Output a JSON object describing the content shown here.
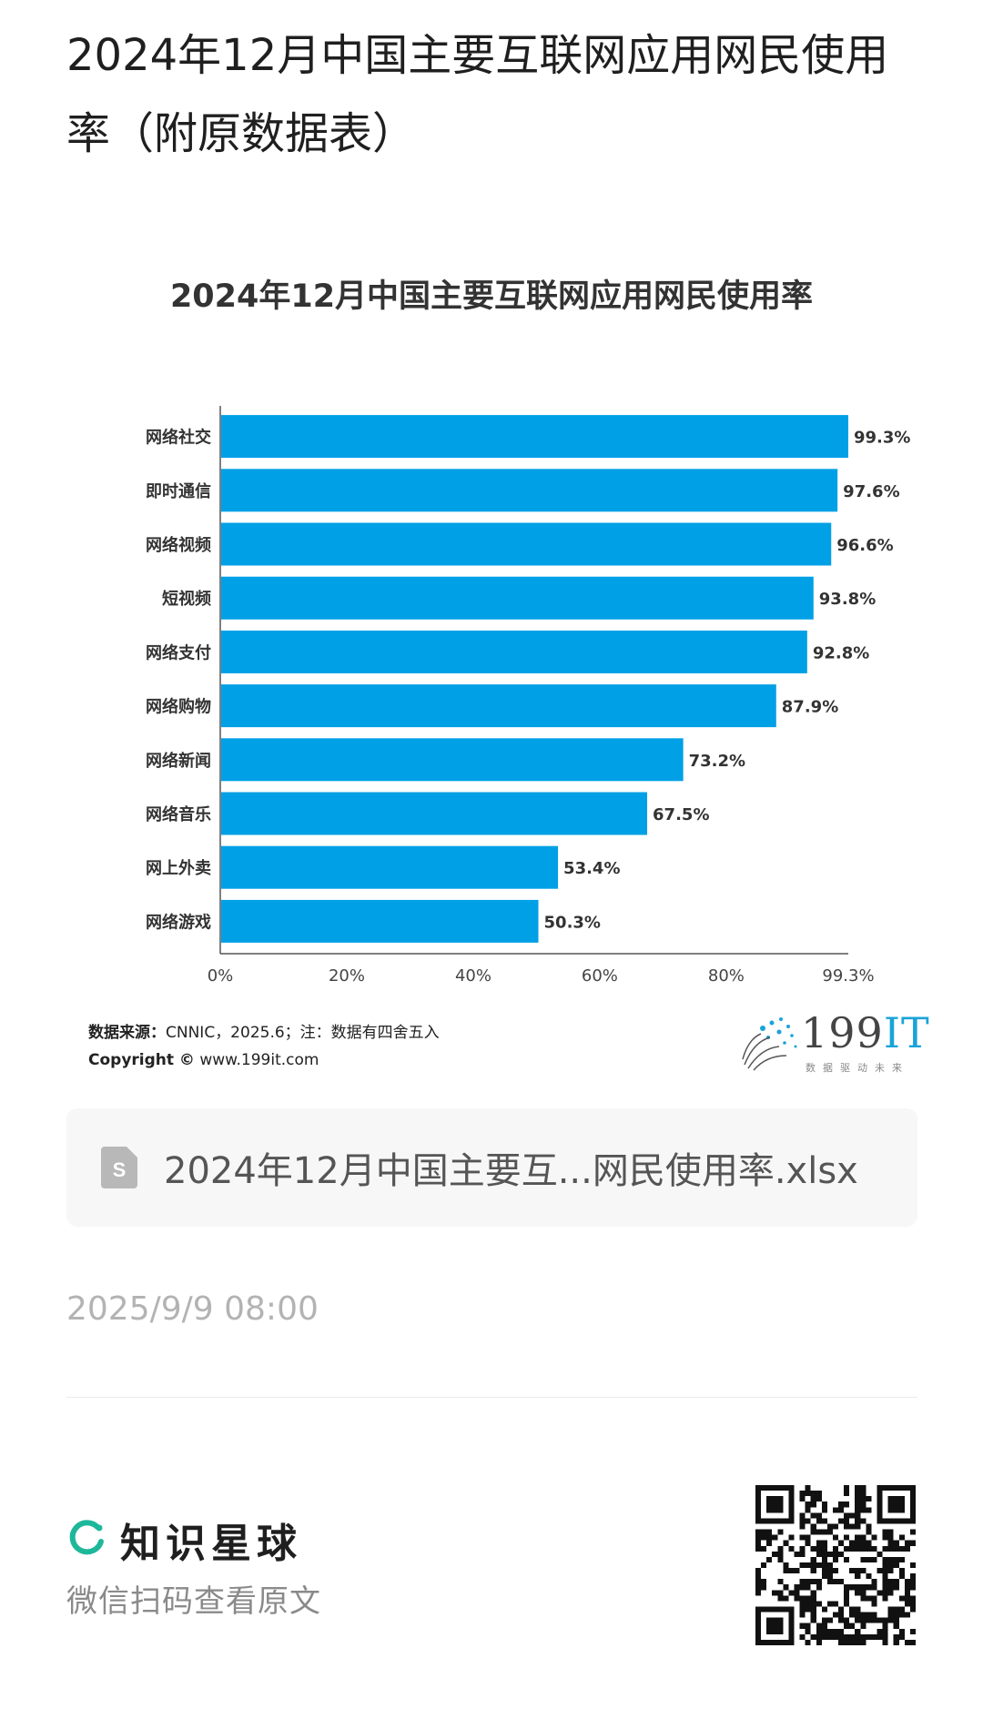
{
  "article": {
    "title": "2024年12月中国主要互联网应用网民使用率（附原数据表）",
    "date": "2025/9/9 08:00"
  },
  "chart_data": {
    "type": "bar",
    "orientation": "horizontal",
    "title": "2024年12月中国主要互联网应用网民使用率",
    "categories": [
      "网络社交",
      "即时通信",
      "网络视频",
      "短视频",
      "网络支付",
      "网络购物",
      "网络新闻",
      "网络音乐",
      "网上外卖",
      "网络游戏"
    ],
    "values": [
      99.3,
      97.6,
      96.6,
      93.8,
      92.8,
      87.9,
      73.2,
      67.5,
      53.4,
      50.3
    ],
    "value_labels": [
      "99.3%",
      "97.6%",
      "96.6%",
      "93.8%",
      "92.8%",
      "87.9%",
      "73.2%",
      "67.5%",
      "53.4%",
      "50.3%"
    ],
    "x_ticks": [
      0,
      20,
      40,
      60,
      80,
      99.3
    ],
    "x_tick_labels": [
      "0%",
      "20%",
      "40%",
      "60%",
      "80%",
      "99.3%"
    ],
    "xlim": [
      0,
      99.3
    ],
    "grid": false,
    "bar_color": "#00a0e6"
  },
  "chart_footer": {
    "source_label": "数据来源：",
    "source_text": "CNNIC，2025.6；注：数据有四舍五入",
    "copyright_label": "Copyright ©",
    "copyright_text": " www.199it.com"
  },
  "logo": {
    "text_main": "199",
    "text_accent": "IT",
    "subtitle": "数据驱动未来"
  },
  "attachment": {
    "file_name": "2024年12月中国主要互...网民使用率.xlsx",
    "icon": "spreadsheet-file-icon",
    "icon_letter": "S"
  },
  "footer": {
    "brand_name": "知识星球",
    "scan_text": "微信扫码查看原文",
    "brand_color": "#1db89a"
  }
}
